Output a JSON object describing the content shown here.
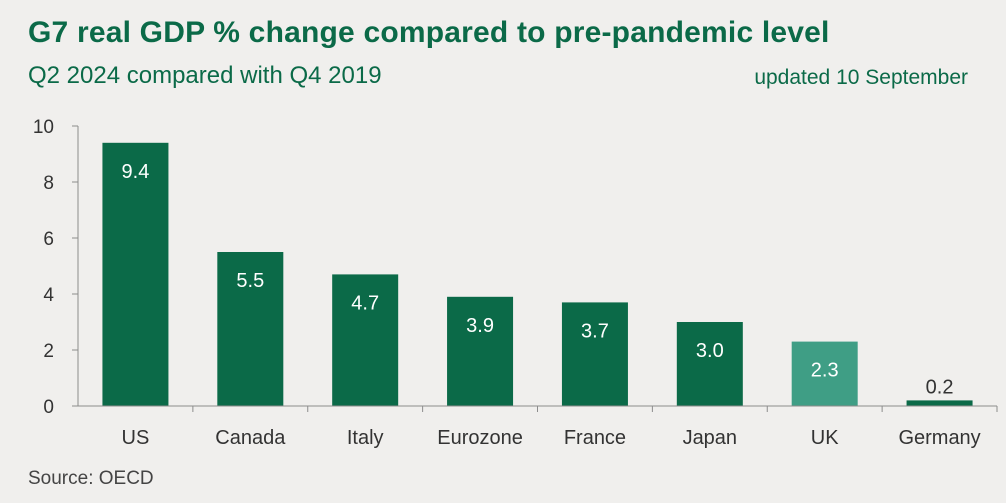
{
  "header": {
    "title": "G7 real GDP % change compared to pre-pandemic level",
    "subtitle": "Q2 2024 compared with Q4 2019",
    "updated": "updated 10 September"
  },
  "footer": {
    "source": "Source: OECD"
  },
  "colors": {
    "bar": "#0b6a48",
    "bar_highlight": "#3f9e85",
    "axis": "#8c8c8c",
    "label_light": "#ffffff",
    "label_dark": "#333333"
  },
  "chart_data": {
    "type": "bar",
    "title": "G7 real GDP % change compared to pre-pandemic level",
    "subtitle": "Q2 2024 compared with Q4 2019",
    "xlabel": "",
    "ylabel": "",
    "ylim": [
      0,
      10
    ],
    "yticks": [
      0,
      2,
      4,
      6,
      8,
      10
    ],
    "ytick_labels": [
      "0",
      "2",
      "4",
      "6",
      "8",
      "10"
    ],
    "categories": [
      "US",
      "Canada",
      "Italy",
      "Eurozone",
      "France",
      "Japan",
      "UK",
      "Germany"
    ],
    "values": [
      9.4,
      5.5,
      4.7,
      3.9,
      3.7,
      3.0,
      2.3,
      0.2
    ],
    "data_labels": [
      "9.4",
      "5.5",
      "4.7",
      "3.9",
      "3.7",
      "3.0",
      "2.3",
      "0.2"
    ],
    "highlighted_category": "UK",
    "grid": false,
    "legend": "none"
  }
}
